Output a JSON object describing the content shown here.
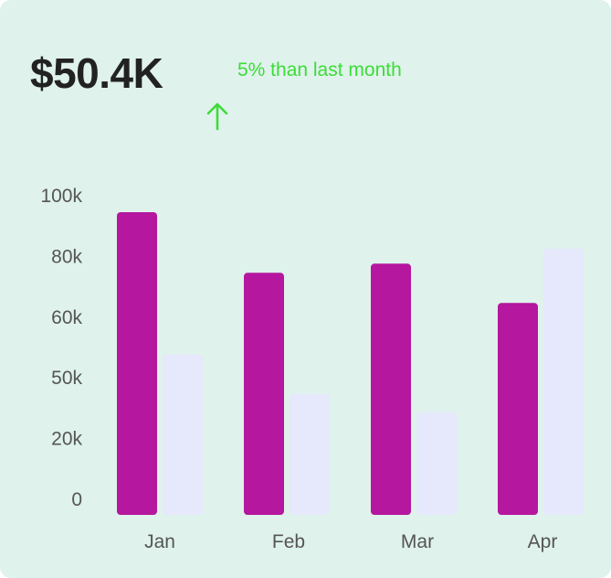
{
  "headline": {
    "value": "$50.4K",
    "trend_text": "5% than last month",
    "trend_direction": "up",
    "trend_color": "#3ddc37"
  },
  "chart_data": {
    "type": "bar",
    "categories": [
      "Jan",
      "Feb",
      "Mar",
      "Apr"
    ],
    "y_tick_labels": [
      "100k",
      "80k",
      "60k",
      "50k",
      "20k",
      "0"
    ],
    "series": [
      {
        "color": "#b5179e",
        "values": [
          100,
          80,
          83,
          70
        ]
      },
      {
        "color": "#e6e8fb",
        "values": [
          53,
          40,
          34,
          88
        ]
      }
    ],
    "ylim": [
      0,
      100
    ],
    "grid": false,
    "legend": "none"
  }
}
